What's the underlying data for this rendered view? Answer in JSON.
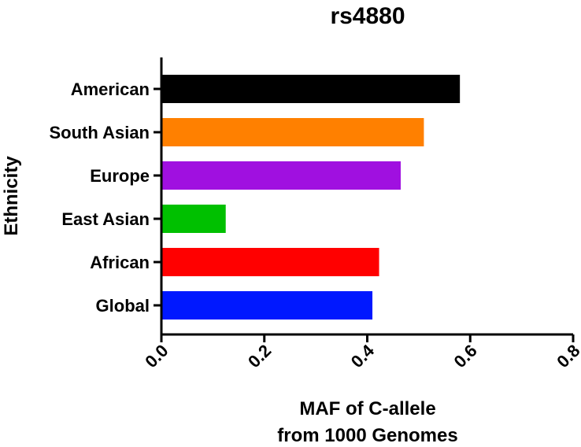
{
  "chart_data": {
    "type": "bar",
    "orientation": "horizontal",
    "title": "rs4880",
    "xlabel": [
      "MAF of C-allele",
      "from 1000 Genomes"
    ],
    "ylabel": "Ethnicity",
    "categories": [
      "American",
      "South Asian",
      "Europe",
      "East Asian",
      "African",
      "Global"
    ],
    "values": [
      0.58,
      0.51,
      0.465,
      0.125,
      0.423,
      0.41
    ],
    "colors": [
      "#000000",
      "#ff8000",
      "#a010e0",
      "#00c000",
      "#ff0000",
      "#0018ff"
    ],
    "xlim": [
      0,
      0.8
    ],
    "xticks": [
      "0.0",
      "0.2",
      "0.4",
      "0.6",
      "0.8"
    ],
    "xtick_values": [
      0,
      0.2,
      0.4,
      0.6,
      0.8
    ],
    "grid": false,
    "legend": "none"
  }
}
